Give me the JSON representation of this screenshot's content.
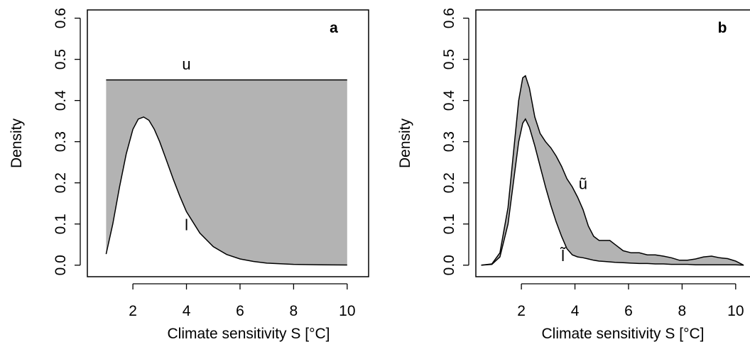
{
  "chart_data": [
    {
      "type": "area",
      "panel_tag": "a",
      "xlabel": "Climate sensitivity S [°C]",
      "ylabel": "Density",
      "xlim": [
        0.3,
        10.8
      ],
      "ylim": [
        -0.028,
        0.62
      ],
      "x_ticks": [
        2,
        4,
        6,
        8,
        10
      ],
      "y_ticks": [
        0.0,
        0.1,
        0.2,
        0.3,
        0.4,
        0.5,
        0.6
      ],
      "grid": false,
      "fill_color": "#b3b3b3",
      "curve_labels": [
        {
          "text": "u",
          "x": 4.0,
          "y": 0.475
        },
        {
          "text": "l",
          "x": 4.0,
          "y": 0.085
        }
      ],
      "series": [
        {
          "name": "u",
          "x": [
            1.0,
            10.0
          ],
          "y": [
            0.45,
            0.45
          ]
        },
        {
          "name": "l",
          "x": [
            1.0,
            1.25,
            1.5,
            1.75,
            2.0,
            2.2,
            2.4,
            2.6,
            2.8,
            3.0,
            3.25,
            3.5,
            3.75,
            4.0,
            4.5,
            5.0,
            5.5,
            6.0,
            6.5,
            7.0,
            8.0,
            9.0,
            10.0
          ],
          "y": [
            0.027,
            0.1,
            0.19,
            0.27,
            0.33,
            0.355,
            0.36,
            0.352,
            0.33,
            0.3,
            0.255,
            0.21,
            0.168,
            0.13,
            0.078,
            0.045,
            0.026,
            0.015,
            0.009,
            0.005,
            0.002,
            0.001,
            0.0005
          ]
        }
      ]
    },
    {
      "type": "area",
      "panel_tag": "b",
      "xlabel": "Climate sensitivity S [°C]",
      "ylabel": "Density",
      "xlim": [
        0.3,
        10.8
      ],
      "ylim": [
        -0.028,
        0.62
      ],
      "x_ticks": [
        2,
        4,
        6,
        8,
        10
      ],
      "y_ticks": [
        0.0,
        0.1,
        0.2,
        0.3,
        0.4,
        0.5,
        0.6
      ],
      "grid": false,
      "fill_color": "#b3b3b3",
      "curve_labels": [
        {
          "text": "ũ",
          "x": 4.3,
          "y": 0.185
        },
        {
          "text": "l̃",
          "x": 3.55,
          "y": 0.01
        }
      ],
      "series": [
        {
          "name": "ũ",
          "x": [
            0.5,
            0.9,
            1.2,
            1.5,
            1.7,
            1.9,
            2.05,
            2.15,
            2.3,
            2.5,
            2.7,
            2.9,
            3.1,
            3.3,
            3.5,
            3.7,
            3.9,
            4.1,
            4.3,
            4.5,
            4.7,
            4.9,
            5.1,
            5.3,
            5.5,
            5.8,
            6.1,
            6.4,
            6.7,
            7.0,
            7.3,
            7.6,
            7.9,
            8.2,
            8.5,
            8.8,
            9.1,
            9.4,
            9.7,
            10.0,
            10.3
          ],
          "y": [
            0.0,
            0.003,
            0.03,
            0.14,
            0.27,
            0.4,
            0.455,
            0.46,
            0.43,
            0.36,
            0.32,
            0.3,
            0.285,
            0.265,
            0.24,
            0.21,
            0.19,
            0.165,
            0.135,
            0.095,
            0.07,
            0.06,
            0.06,
            0.06,
            0.05,
            0.035,
            0.03,
            0.03,
            0.025,
            0.025,
            0.022,
            0.018,
            0.012,
            0.012,
            0.015,
            0.02,
            0.022,
            0.018,
            0.016,
            0.01,
            0.0
          ]
        },
        {
          "name": "l̃",
          "x": [
            0.5,
            0.9,
            1.2,
            1.5,
            1.7,
            1.9,
            2.05,
            2.15,
            2.3,
            2.5,
            2.7,
            2.9,
            3.1,
            3.3,
            3.5,
            3.7,
            3.9,
            4.1,
            4.3,
            4.5,
            4.7,
            4.9,
            5.1,
            5.3,
            5.5,
            5.8,
            6.1,
            6.4,
            6.7,
            7.0,
            7.3,
            7.6,
            7.9,
            8.2,
            8.5,
            8.8,
            9.1,
            9.4,
            9.7,
            10.0,
            10.3
          ],
          "y": [
            0.0,
            0.002,
            0.02,
            0.1,
            0.2,
            0.3,
            0.345,
            0.355,
            0.335,
            0.29,
            0.24,
            0.19,
            0.145,
            0.105,
            0.07,
            0.04,
            0.025,
            0.02,
            0.018,
            0.015,
            0.012,
            0.01,
            0.009,
            0.008,
            0.007,
            0.006,
            0.005,
            0.004,
            0.004,
            0.003,
            0.003,
            0.002,
            0.002,
            0.002,
            0.001,
            0.001,
            0.001,
            0.001,
            0.001,
            0.001,
            0.0
          ]
        }
      ]
    }
  ]
}
